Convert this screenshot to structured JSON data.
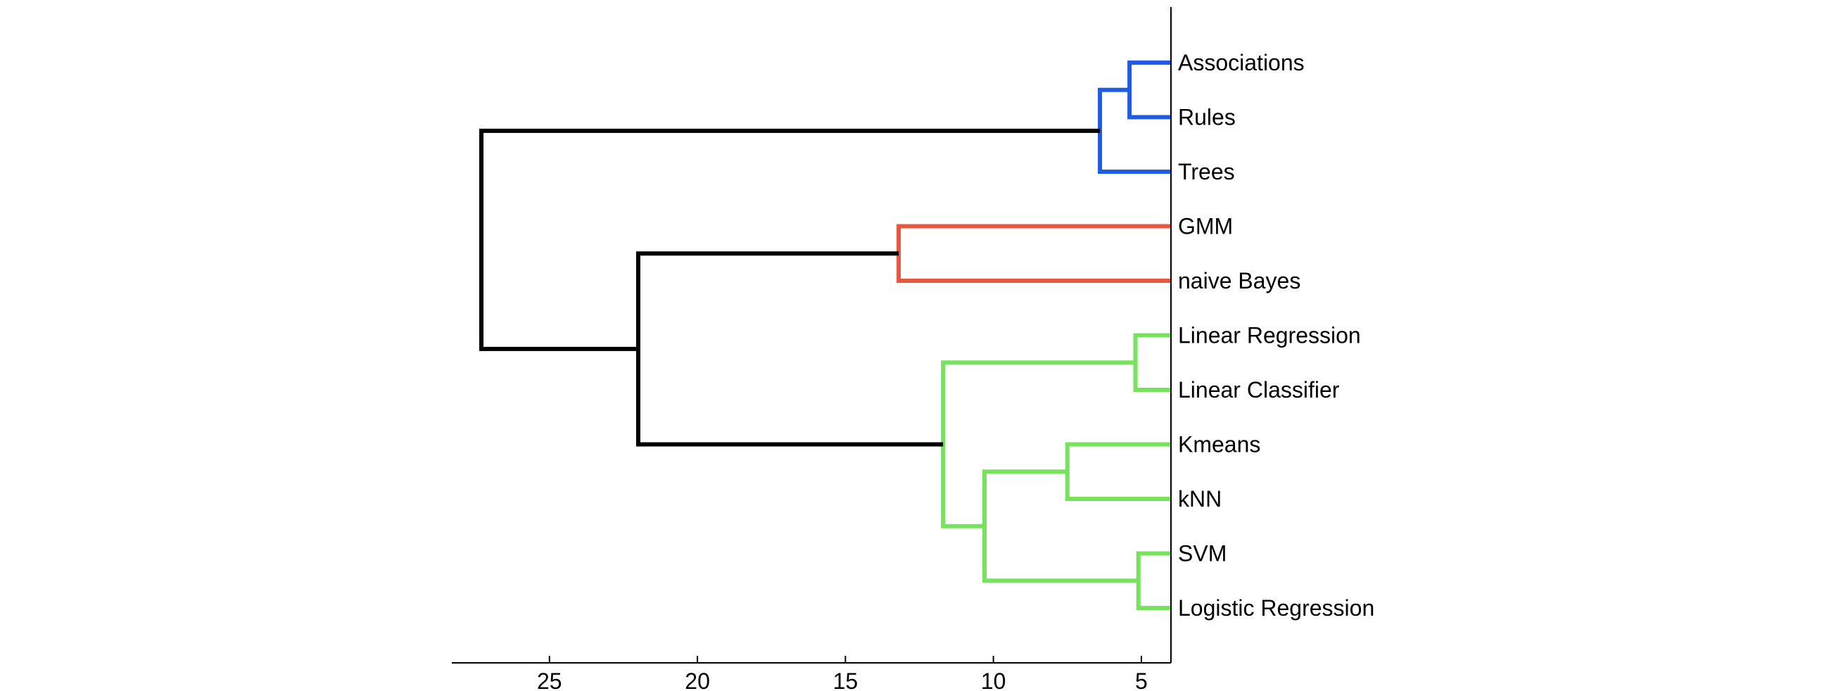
{
  "chart_data": {
    "type": "dendrogram",
    "orientation": "left",
    "title": "",
    "xlabel": "",
    "ylabel": "",
    "xlim": [
      28.3,
      4.0
    ],
    "xticks": [
      25,
      20,
      15,
      10,
      5
    ],
    "leaves": [
      "Associations",
      "Rules",
      "Trees",
      "GMM",
      "naive Bayes",
      "Linear Regression",
      "Linear Classifier",
      "Kmeans",
      "kNN",
      "SVM",
      "Logistic Regression"
    ],
    "merges": [
      {
        "left": "leaf:0",
        "right": "leaf:1",
        "height": 5.4,
        "color": "#1f5ce6"
      },
      {
        "left": "merge:0",
        "right": "leaf:2",
        "height": 6.4,
        "color": "#1f5ce6"
      },
      {
        "left": "leaf:3",
        "right": "leaf:4",
        "height": 13.2,
        "color": "#e8573f"
      },
      {
        "left": "leaf:5",
        "right": "leaf:6",
        "height": 5.2,
        "color": "#77e35d"
      },
      {
        "left": "leaf:7",
        "right": "leaf:8",
        "height": 7.5,
        "color": "#77e35d"
      },
      {
        "left": "leaf:9",
        "right": "leaf:10",
        "height": 5.1,
        "color": "#77e35d"
      },
      {
        "left": "merge:4",
        "right": "merge:5",
        "height": 10.3,
        "color": "#77e35d"
      },
      {
        "left": "merge:3",
        "right": "merge:6",
        "height": 11.7,
        "color": "#77e35d"
      },
      {
        "left": "merge:2",
        "right": "merge:7",
        "height": 22.0,
        "color": "#000000"
      },
      {
        "left": "merge:1",
        "right": "merge:8",
        "height": 27.3,
        "color": "#000000"
      }
    ]
  }
}
